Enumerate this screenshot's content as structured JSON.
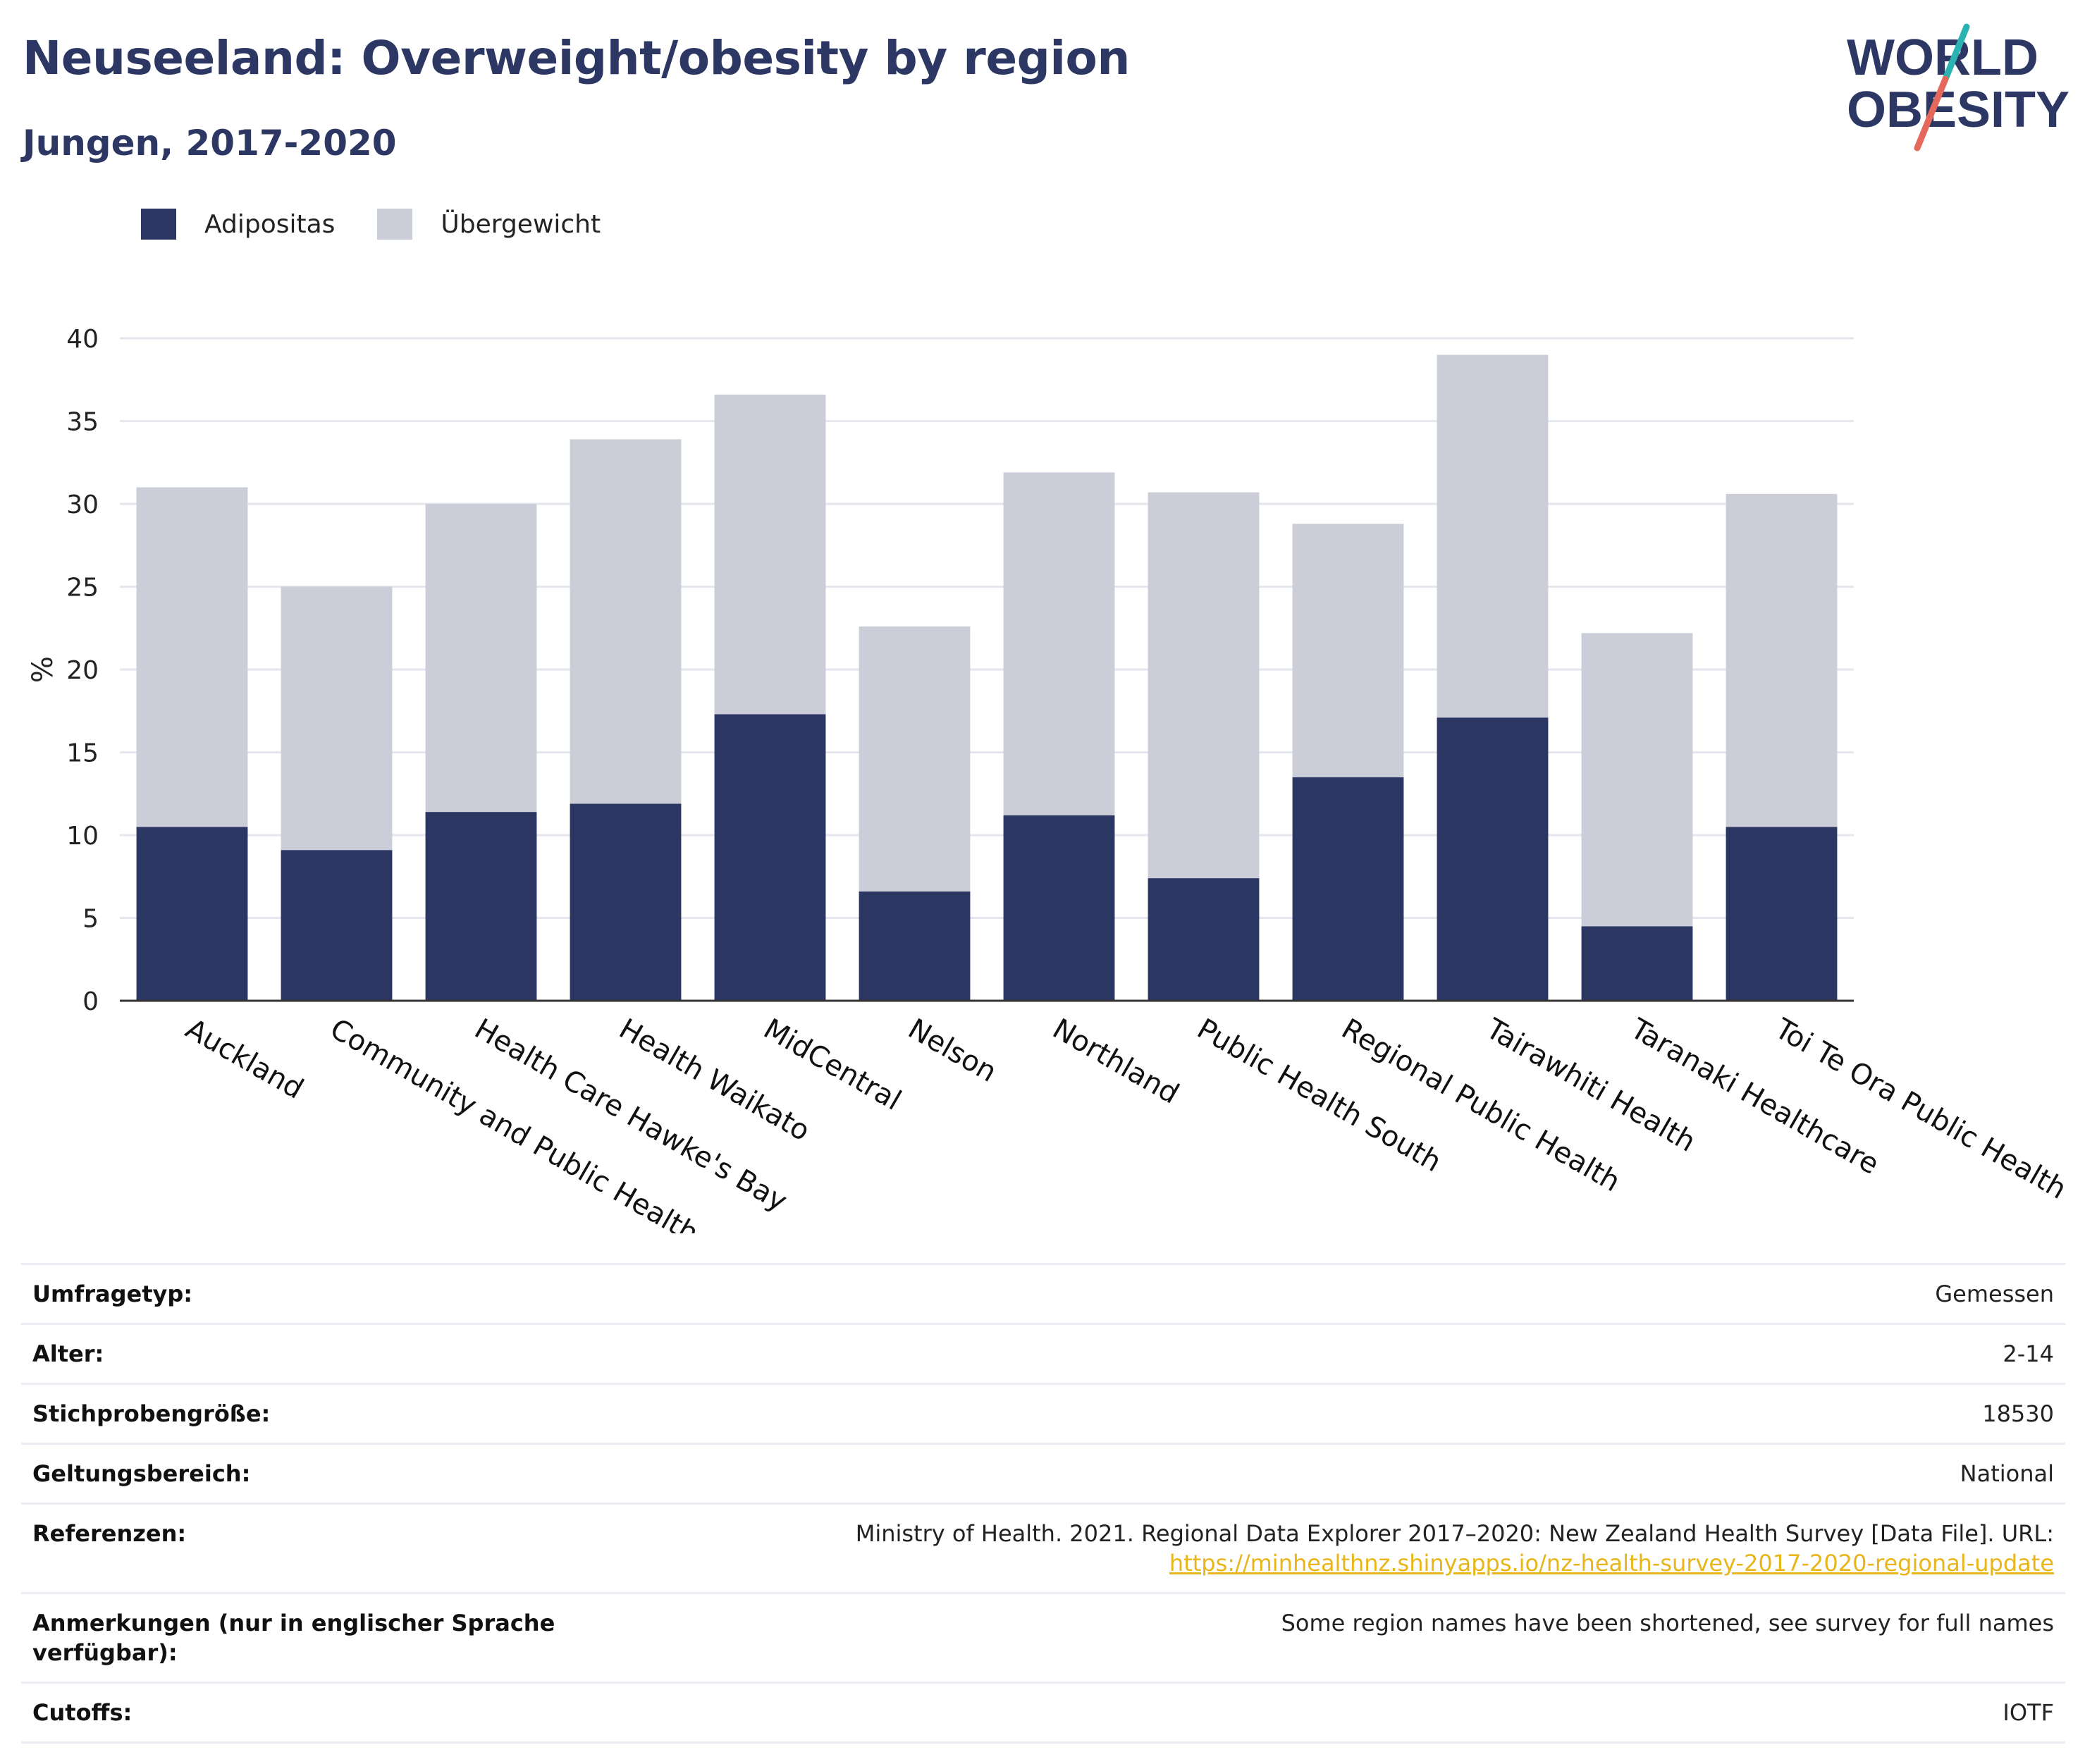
{
  "header": {
    "title": "Neuseeland: Overweight/obesity by region",
    "subtitle": "Jungen, 2017-2020"
  },
  "logo": {
    "line1": "WORLD",
    "line2": "OBESITY"
  },
  "colors": {
    "adipositas": "#2b3663",
    "uebergewicht": "#cbcdd8",
    "title": "#2d3764",
    "link": "#e8b51a"
  },
  "chart_data": {
    "type": "bar",
    "stacked": true,
    "categories": [
      "Auckland",
      "Community and Public Health",
      "Health Care Hawke's Bay",
      "Health Waikato",
      "MidCentral",
      "Nelson",
      "Northland",
      "Public Health South",
      "Regional Public Health",
      "Tairawhiti Health",
      "Taranaki Healthcare",
      "Toi Te Ora Public Health"
    ],
    "series": [
      {
        "name": "Adipositas",
        "values": [
          10.5,
          9.1,
          11.4,
          11.9,
          17.3,
          6.6,
          11.2,
          7.4,
          13.5,
          17.1,
          4.5,
          10.5
        ]
      },
      {
        "name": "Übergewicht",
        "values": [
          20.5,
          15.9,
          18.6,
          22.0,
          19.3,
          16.0,
          20.7,
          23.3,
          15.3,
          21.9,
          17.7,
          20.1
        ]
      }
    ],
    "ylabel": "%",
    "ylim": [
      0,
      40
    ],
    "yticks": [
      0,
      5,
      10,
      15,
      20,
      25,
      30,
      35,
      40
    ],
    "grid": true,
    "legend_position": "top-left"
  },
  "info": [
    {
      "key": "Umfragetyp:",
      "value": "Gemessen"
    },
    {
      "key": "Alter:",
      "value": "2-14"
    },
    {
      "key": "Stichprobengröße:",
      "value": "18530"
    },
    {
      "key": "Geltungsbereich:",
      "value": "National"
    },
    {
      "key": "Referenzen:",
      "value": "Ministry of Health. 2021. Regional Data Explorer 2017–2020: New Zealand Health Survey [Data File]. URL:",
      "link": "https://minhealthnz.shinyapps.io/nz-health-survey-2017-2020-regional-update"
    },
    {
      "key": "Anmerkungen (nur in englischer Sprache verfügbar):",
      "value": "Some region names have been shortened, see survey for full names"
    },
    {
      "key": "Cutoffs:",
      "value": "IOTF"
    }
  ]
}
